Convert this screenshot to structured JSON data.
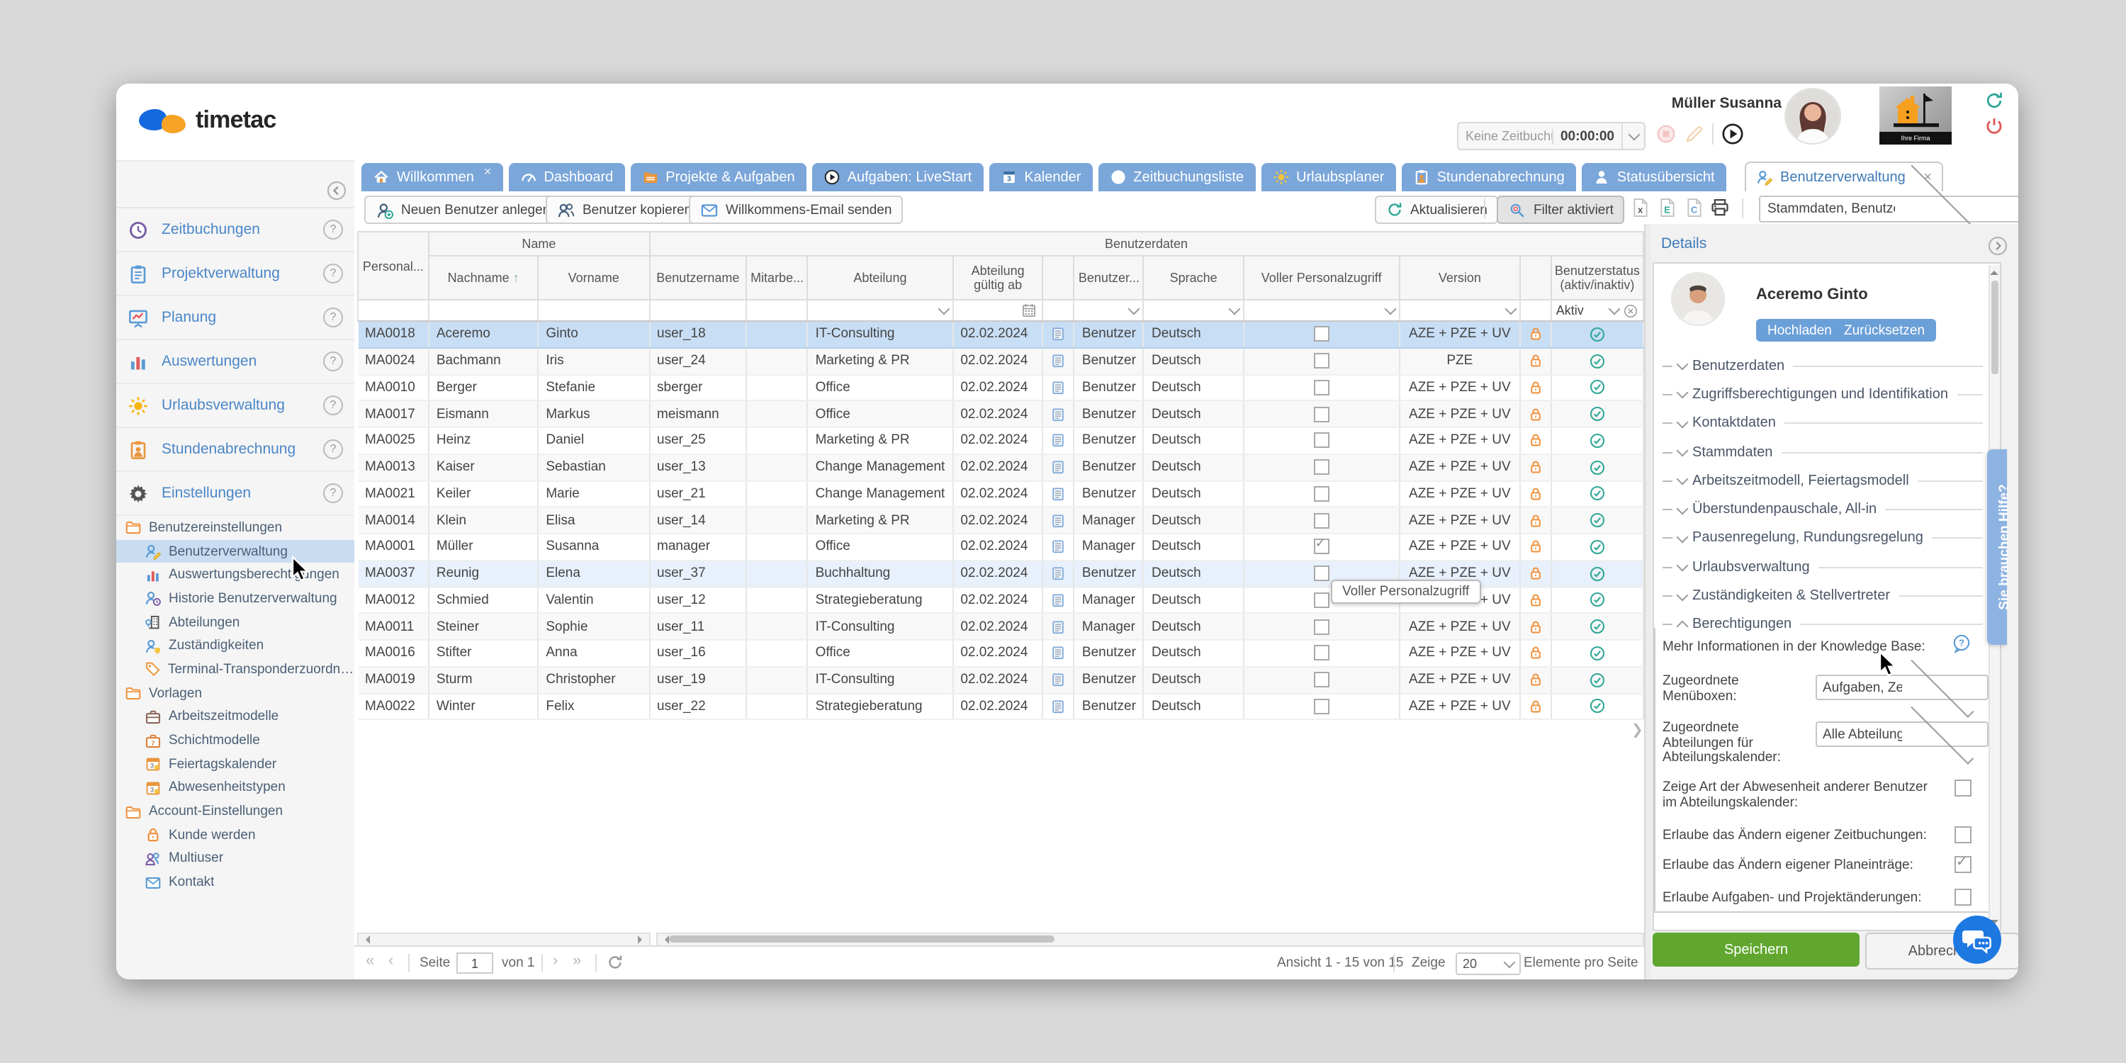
{
  "topbar": {
    "brand": "timetac",
    "user_name": "Müller Susanna",
    "tracker_status": "Keine Zeitbuchun...",
    "tracker_time": "00:00:00",
    "company_logo_caption": "Ihre Firma"
  },
  "sidebar": {
    "menu": [
      {
        "label": "Zeitbuchungen",
        "icon": "clock"
      },
      {
        "label": "Projektverwaltung",
        "icon": "clipboard"
      },
      {
        "label": "Planung",
        "icon": "board"
      },
      {
        "label": "Auswertungen",
        "icon": "bars"
      },
      {
        "label": "Urlaubsverwaltung",
        "icon": "sun"
      },
      {
        "label": "Stundenabrechnung",
        "icon": "clipboard-user"
      },
      {
        "label": "Einstellungen",
        "icon": "gear"
      }
    ],
    "tree": [
      {
        "label": "Benutzereinstellungen",
        "icon": "folder",
        "level": 0,
        "selected": false
      },
      {
        "label": "Benutzerverwaltung",
        "icon": "user-edit",
        "level": 1,
        "selected": true
      },
      {
        "label": "Auswertungsberechtigungen",
        "icon": "bars",
        "level": 1,
        "selected": false
      },
      {
        "label": "Historie Benutzerverwaltung",
        "icon": "user-history",
        "level": 1,
        "selected": false
      },
      {
        "label": "Abteilungen",
        "icon": "building",
        "level": 1,
        "selected": false
      },
      {
        "label": "Zuständigkeiten",
        "icon": "user-badge",
        "level": 1,
        "selected": false
      },
      {
        "label": "Terminal-Transponderzuordnung",
        "icon": "tag",
        "level": 1,
        "selected": false
      },
      {
        "label": "Vorlagen",
        "icon": "folder",
        "level": 0,
        "selected": false
      },
      {
        "label": "Arbeitszeitmodelle",
        "icon": "case",
        "level": 1,
        "selected": false
      },
      {
        "label": "Schichtmodelle",
        "icon": "case-7",
        "level": 1,
        "selected": false
      },
      {
        "label": "Feiertagskalender",
        "icon": "cal-3",
        "level": 1,
        "selected": false
      },
      {
        "label": "Abwesenheitstypen",
        "icon": "cal-3",
        "level": 1,
        "selected": false
      },
      {
        "label": "Account-Einstellungen",
        "icon": "folder",
        "level": 0,
        "selected": false
      },
      {
        "label": "Kunde werden",
        "icon": "lock",
        "level": 1,
        "selected": false
      },
      {
        "label": "Multiuser",
        "icon": "users",
        "level": 1,
        "selected": false
      },
      {
        "label": "Kontakt",
        "icon": "mail",
        "level": 1,
        "selected": false
      }
    ]
  },
  "tabs": [
    {
      "label": "Willkommen",
      "icon": "home",
      "closable": true
    },
    {
      "label": "Dashboard",
      "icon": "gauge",
      "closable": false
    },
    {
      "label": "Projekte & Aufgaben",
      "icon": "folder-tasks",
      "closable": false
    },
    {
      "label": "Aufgaben: LiveStart",
      "icon": "play",
      "closable": false
    },
    {
      "label": "Kalender",
      "icon": "calendar",
      "closable": false
    },
    {
      "label": "Zeitbuchungsliste",
      "icon": "clock",
      "closable": false
    },
    {
      "label": "Urlaubsplaner",
      "icon": "sun",
      "closable": false
    },
    {
      "label": "Stundenabrechnung",
      "icon": "clipboard-user",
      "closable": false
    },
    {
      "label": "Statusübersicht",
      "icon": "person",
      "closable": false
    }
  ],
  "active_tab": {
    "label": "Benutzerverwaltung"
  },
  "view_select": {
    "value": "Stammdaten, Benutzerdaten, Arbei"
  },
  "toolbar": {
    "new_user": "Neuen Benutzer anlegen",
    "copy_user": "Benutzer kopieren",
    "welcome_email": "Willkommens-Email senden",
    "refresh": "Aktualisieren",
    "filter": "Filter aktiviert"
  },
  "table": {
    "groups": {
      "name": "Name",
      "userdata": "Benutzerdaten"
    },
    "columns": [
      {
        "label": "Personal...",
        "sorted": false
      },
      {
        "label": "Nachname",
        "sorted": true
      },
      {
        "label": "Vorname",
        "sorted": false
      },
      {
        "label": "Benutzername",
        "sorted": false
      },
      {
        "label": "Mitarbe...",
        "sorted": false
      },
      {
        "label": "Abteilung",
        "sorted": false
      },
      {
        "label": "Abteilung gültig ab",
        "sorted": false
      },
      {
        "label": "",
        "sorted": false
      },
      {
        "label": "Benutzer...",
        "sorted": false
      },
      {
        "label": "Sprache",
        "sorted": false
      },
      {
        "label": "Voller Personalzugriff",
        "sorted": false
      },
      {
        "label": "Version",
        "sorted": false
      },
      {
        "label": "",
        "sorted": false
      },
      {
        "label": "Benutzerstatus (aktiv/inaktiv)",
        "sorted": false
      }
    ],
    "filter_status": "Aktiv",
    "tooltip": "Voller Personalzugriff",
    "rows": [
      {
        "id": "MA0018",
        "last": "Aceremo",
        "first": "Ginto",
        "username": "user_18",
        "dept": "IT-Consulting",
        "date": "02.02.2024",
        "role": "Benutzer",
        "lang": "Deutsch",
        "full_access": false,
        "version": "AZE + PZE + UV",
        "state": "selected"
      },
      {
        "id": "MA0024",
        "last": "Bachmann",
        "first": "Iris",
        "username": "user_24",
        "dept": "Marketing & PR",
        "date": "02.02.2024",
        "role": "Benutzer",
        "lang": "Deutsch",
        "full_access": false,
        "version": "PZE",
        "state": ""
      },
      {
        "id": "MA0010",
        "last": "Berger",
        "first": "Stefanie",
        "username": "sberger",
        "dept": "Office",
        "date": "02.02.2024",
        "role": "Benutzer",
        "lang": "Deutsch",
        "full_access": false,
        "version": "AZE + PZE + UV",
        "state": ""
      },
      {
        "id": "MA0017",
        "last": "Eismann",
        "first": "Markus",
        "username": "meismann",
        "dept": "Office",
        "date": "02.02.2024",
        "role": "Benutzer",
        "lang": "Deutsch",
        "full_access": false,
        "version": "AZE + PZE + UV",
        "state": ""
      },
      {
        "id": "MA0025",
        "last": "Heinz",
        "first": "Daniel",
        "username": "user_25",
        "dept": "Marketing & PR",
        "date": "02.02.2024",
        "role": "Benutzer",
        "lang": "Deutsch",
        "full_access": false,
        "version": "AZE + PZE + UV",
        "state": ""
      },
      {
        "id": "MA0013",
        "last": "Kaiser",
        "first": "Sebastian",
        "username": "user_13",
        "dept": "Change Management",
        "date": "02.02.2024",
        "role": "Benutzer",
        "lang": "Deutsch",
        "full_access": false,
        "version": "AZE + PZE + UV",
        "state": ""
      },
      {
        "id": "MA0021",
        "last": "Keiler",
        "first": "Marie",
        "username": "user_21",
        "dept": "Change Management",
        "date": "02.02.2024",
        "role": "Benutzer",
        "lang": "Deutsch",
        "full_access": false,
        "version": "AZE + PZE + UV",
        "state": ""
      },
      {
        "id": "MA0014",
        "last": "Klein",
        "first": "Elisa",
        "username": "user_14",
        "dept": "Marketing & PR",
        "date": "02.02.2024",
        "role": "Manager",
        "lang": "Deutsch",
        "full_access": false,
        "version": "AZE + PZE + UV",
        "state": ""
      },
      {
        "id": "MA0001",
        "last": "Müller",
        "first": "Susanna",
        "username": "manager",
        "dept": "Office",
        "date": "02.02.2024",
        "role": "Manager",
        "lang": "Deutsch",
        "full_access": true,
        "version": "AZE + PZE + UV",
        "state": ""
      },
      {
        "id": "MA0037",
        "last": "Reunig",
        "first": "Elena",
        "username": "user_37",
        "dept": "Buchhaltung",
        "date": "02.02.2024",
        "role": "Benutzer",
        "lang": "Deutsch",
        "full_access": false,
        "version": "AZE + PZE + UV",
        "state": "hover"
      },
      {
        "id": "MA0012",
        "last": "Schmied",
        "first": "Valentin",
        "username": "user_12",
        "dept": "Strategieberatung",
        "date": "02.02.2024",
        "role": "Manager",
        "lang": "Deutsch",
        "full_access": false,
        "version": "AZE + PZE + UV",
        "state": "tooltip"
      },
      {
        "id": "MA0011",
        "last": "Steiner",
        "first": "Sophie",
        "username": "user_11",
        "dept": "IT-Consulting",
        "date": "02.02.2024",
        "role": "Manager",
        "lang": "Deutsch",
        "full_access": false,
        "version": "AZE + PZE + UV",
        "state": ""
      },
      {
        "id": "MA0016",
        "last": "Stifter",
        "first": "Anna",
        "username": "user_16",
        "dept": "Office",
        "date": "02.02.2024",
        "role": "Benutzer",
        "lang": "Deutsch",
        "full_access": false,
        "version": "AZE + PZE + UV",
        "state": ""
      },
      {
        "id": "MA0019",
        "last": "Sturm",
        "first": "Christopher",
        "username": "user_19",
        "dept": "IT-Consulting",
        "date": "02.02.2024",
        "role": "Benutzer",
        "lang": "Deutsch",
        "full_access": false,
        "version": "AZE + PZE + UV",
        "state": ""
      },
      {
        "id": "MA0022",
        "last": "Winter",
        "first": "Felix",
        "username": "user_22",
        "dept": "Strategieberatung",
        "date": "02.02.2024",
        "role": "Benutzer",
        "lang": "Deutsch",
        "full_access": false,
        "version": "AZE + PZE + UV",
        "state": ""
      }
    ]
  },
  "pagination": {
    "page_label": "Seite",
    "page_value": "1",
    "of_label": "von 1",
    "view_info": "Ansicht 1 - 15 von 15",
    "show_label": "Zeige",
    "per_page": "20",
    "items_label": "Elemente pro Seite"
  },
  "details": {
    "title": "Details",
    "person_name": "Aceremo Ginto",
    "upload_btn": "Hochladen",
    "reset_btn": "Zurücksetzen",
    "sections": [
      "Benutzerdaten",
      "Zugriffsberechtigungen und Identifikation",
      "Kontaktdaten",
      "Stammdaten",
      "Arbeitszeitmodell, Feiertagsmodell",
      "Überstundenpauschale, All-in",
      "Pausenregelung, Rundungsregelung",
      "Urlaubsverwaltung",
      "Zuständigkeiten & Stellvertreter"
    ],
    "expanded_section": "Berechtigungen",
    "kb_text": "Mehr Informationen in der Knowledge Base:",
    "fields": [
      {
        "label": "Zugeordnete Menüboxen:",
        "type": "select",
        "value": "Aufgaben, Zeitbuchu",
        "checked": false
      },
      {
        "label": "Zugeordnete Abteilungen für Abteilungskalender:",
        "type": "select",
        "value": "Alle Abteilungen",
        "checked": false
      },
      {
        "label": "Zeige Art der Abwesenheit anderer Benutzer im Abteilungskalender:",
        "type": "checkbox",
        "value": "",
        "checked": false
      },
      {
        "label": "Erlaube das Ändern eigener Zeitbuchungen:",
        "type": "checkbox",
        "value": "",
        "checked": false
      },
      {
        "label": "Erlaube das Ändern eigener Planeinträge:",
        "type": "checkbox",
        "value": "",
        "checked": true
      },
      {
        "label": "Erlaube Aufgaben- und Projektänderungen:",
        "type": "checkbox",
        "value": "",
        "checked": false
      }
    ],
    "save_btn": "Speichern",
    "cancel_btn": "Abbrechen",
    "help_tab": "Sie brauchen Hilfe?"
  },
  "colors": {
    "tab_blue": "#7ba6d9",
    "link_blue": "#3d7ab8",
    "orange": "#f0923f",
    "teal": "#2fa796",
    "green": "#61a72f",
    "red": "#e05c5c",
    "selected_row": "#c8def5",
    "hover_row": "#e7f0fb"
  }
}
